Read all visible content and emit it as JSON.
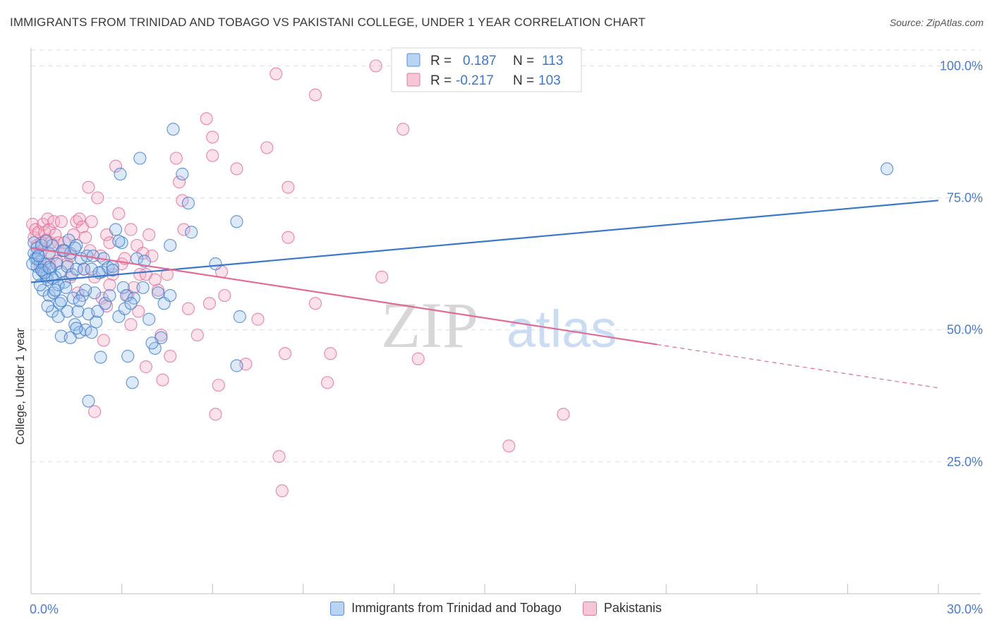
{
  "title": "IMMIGRANTS FROM TRINIDAD AND TOBAGO VS PAKISTANI COLLEGE, UNDER 1 YEAR CORRELATION CHART",
  "source": "Source: ZipAtlas.com",
  "watermark": {
    "zip": "ZIP",
    "atlas": "atlas"
  },
  "colors": {
    "blue": "#3b78c9",
    "blue_fill": "#9cc0ec",
    "pink": "#e06b96",
    "pink_fill": "#f3aac3",
    "axis_label": "#4a7cc7",
    "grid": "#dcdcdc"
  },
  "legend_box": {
    "rows": [
      {
        "r_label": "R =",
        "r_value": "0.187",
        "n_label": "N =",
        "n_value": "113"
      },
      {
        "r_label": "R =",
        "r_value": "-0.217",
        "n_label": "N =",
        "n_value": "103"
      }
    ]
  },
  "legend": [
    {
      "label": "Immigrants from Trinidad and Tobago"
    },
    {
      "label": "Pakistanis"
    }
  ],
  "chart_data": {
    "type": "scatter",
    "title": "IMMIGRANTS FROM TRINIDAD AND TOBAGO VS PAKISTANI COLLEGE, UNDER 1 YEAR CORRELATION CHART",
    "xlabel": "",
    "ylabel": "College, Under 1 year",
    "xlim": [
      0,
      30
    ],
    "ylim": [
      0,
      105
    ],
    "x_tick_labels": [
      "0.0%",
      "30.0%"
    ],
    "y_ticks": [
      25,
      50,
      75,
      100
    ],
    "y_tick_labels": [
      "25.0%",
      "50.0%",
      "75.0%",
      "100.0%"
    ],
    "grid": true,
    "legend_position": "top-center",
    "series": [
      {
        "name": "Immigrants from Trinidad and Tobago",
        "r": 0.187,
        "n": 113,
        "trend": {
          "x": [
            0,
            30
          ],
          "y": [
            59.0,
            74.5
          ]
        },
        "points": [
          [
            0.1,
            66.5
          ],
          [
            0.1,
            64.5
          ],
          [
            0.15,
            63.5
          ],
          [
            0.2,
            65.5
          ],
          [
            0.2,
            62
          ],
          [
            0.25,
            60.5
          ],
          [
            0.3,
            63
          ],
          [
            0.35,
            66
          ],
          [
            0.4,
            61
          ],
          [
            0.4,
            57.5
          ],
          [
            0.45,
            62.5
          ],
          [
            0.5,
            60
          ],
          [
            0.55,
            59.5
          ],
          [
            0.6,
            64.5
          ],
          [
            0.6,
            56.5
          ],
          [
            0.65,
            61.5
          ],
          [
            0.7,
            53.5
          ],
          [
            0.7,
            66
          ],
          [
            0.75,
            57
          ],
          [
            0.8,
            60
          ],
          [
            0.85,
            62.5
          ],
          [
            0.9,
            52.5
          ],
          [
            0.95,
            55
          ],
          [
            1.0,
            61
          ],
          [
            1.0,
            48.8
          ],
          [
            1.05,
            65
          ],
          [
            1.1,
            59
          ],
          [
            1.2,
            62
          ],
          [
            1.2,
            53.5
          ],
          [
            1.25,
            67
          ],
          [
            1.3,
            64.5
          ],
          [
            1.35,
            60.5
          ],
          [
            1.4,
            56
          ],
          [
            1.45,
            51
          ],
          [
            1.5,
            66
          ],
          [
            1.5,
            61.5
          ],
          [
            1.55,
            53.5
          ],
          [
            1.6,
            49.5
          ],
          [
            1.65,
            63.5
          ],
          [
            1.7,
            56.5
          ],
          [
            1.75,
            61.5
          ],
          [
            1.8,
            50
          ],
          [
            1.85,
            64
          ],
          [
            1.9,
            53
          ],
          [
            2.0,
            49.5
          ],
          [
            2.05,
            64
          ],
          [
            2.1,
            57
          ],
          [
            2.15,
            51.5
          ],
          [
            2.2,
            53.5
          ],
          [
            2.3,
            44.8
          ],
          [
            2.35,
            61
          ],
          [
            2.4,
            63.5
          ],
          [
            2.45,
            55
          ],
          [
            2.55,
            61.8
          ],
          [
            2.6,
            56.5
          ],
          [
            2.7,
            62
          ],
          [
            2.8,
            69
          ],
          [
            2.9,
            52.5
          ],
          [
            2.95,
            79.5
          ],
          [
            3.0,
            66.5
          ],
          [
            3.05,
            58
          ],
          [
            3.15,
            56.5
          ],
          [
            3.2,
            45
          ],
          [
            3.35,
            40
          ],
          [
            3.4,
            56
          ],
          [
            3.5,
            63.5
          ],
          [
            3.6,
            82.5
          ],
          [
            3.7,
            58
          ],
          [
            3.75,
            63
          ],
          [
            3.9,
            52
          ],
          [
            4.1,
            46.5
          ],
          [
            4.2,
            57
          ],
          [
            4.3,
            48.5
          ],
          [
            4.4,
            55
          ],
          [
            4.6,
            56.5
          ],
          [
            4.6,
            66
          ],
          [
            4.7,
            88
          ],
          [
            5.0,
            79.5
          ],
          [
            5.2,
            74
          ],
          [
            5.3,
            68.5
          ],
          [
            6.1,
            62.5
          ],
          [
            6.8,
            70.5
          ],
          [
            6.9,
            52.5
          ],
          [
            6.8,
            43.2
          ],
          [
            1.9,
            36.5
          ],
          [
            0.7,
            59.8
          ],
          [
            0.9,
            58.5
          ],
          [
            1.15,
            58
          ],
          [
            1.6,
            55.5
          ],
          [
            2.0,
            61.5
          ],
          [
            0.3,
            58.5
          ],
          [
            0.55,
            54.5
          ],
          [
            1.3,
            48.5
          ],
          [
            2.7,
            61.3
          ],
          [
            3.1,
            54
          ],
          [
            0.2,
            63.5
          ],
          [
            0.5,
            66.8
          ],
          [
            1.8,
            57.5
          ],
          [
            2.25,
            60.8
          ],
          [
            0.45,
            60.8
          ],
          [
            0.8,
            57.5
          ],
          [
            1.0,
            55.5
          ],
          [
            1.5,
            50.3
          ],
          [
            28.3,
            80.5
          ],
          [
            0.05,
            62.5
          ],
          [
            0.35,
            61.3
          ],
          [
            1.45,
            65.5
          ],
          [
            2.9,
            66.8
          ],
          [
            0.6,
            61.8
          ],
          [
            1.1,
            65
          ],
          [
            3.3,
            55
          ],
          [
            0.25,
            64
          ],
          [
            4.0,
            47.5
          ]
        ]
      },
      {
        "name": "Pakistanis",
        "r": -0.217,
        "n": 103,
        "trend": {
          "x": [
            0,
            30
          ],
          "y": [
            65.5,
            39.0
          ],
          "solid_until_x": 20.7
        },
        "points": [
          [
            0.05,
            70
          ],
          [
            0.1,
            67.5
          ],
          [
            0.15,
            69
          ],
          [
            0.2,
            66
          ],
          [
            0.25,
            68.5
          ],
          [
            0.3,
            64.5
          ],
          [
            0.35,
            66.5
          ],
          [
            0.4,
            70
          ],
          [
            0.45,
            68.5
          ],
          [
            0.5,
            67
          ],
          [
            0.55,
            71
          ],
          [
            0.6,
            69
          ],
          [
            0.65,
            66.5
          ],
          [
            0.7,
            64
          ],
          [
            0.75,
            70.5
          ],
          [
            0.8,
            68
          ],
          [
            0.9,
            66.5
          ],
          [
            1.0,
            70.5
          ],
          [
            1.05,
            65
          ],
          [
            1.1,
            66.5
          ],
          [
            1.2,
            62.5
          ],
          [
            1.3,
            64
          ],
          [
            1.4,
            68
          ],
          [
            1.5,
            70.5
          ],
          [
            1.6,
            71
          ],
          [
            1.7,
            69.5
          ],
          [
            1.8,
            67.5
          ],
          [
            1.9,
            77
          ],
          [
            1.95,
            65
          ],
          [
            2.0,
            70.5
          ],
          [
            2.1,
            60
          ],
          [
            2.2,
            75
          ],
          [
            2.3,
            64
          ],
          [
            2.35,
            56
          ],
          [
            2.5,
            68
          ],
          [
            2.5,
            54.5
          ],
          [
            2.6,
            66.5
          ],
          [
            2.7,
            60.5
          ],
          [
            2.8,
            81
          ],
          [
            2.9,
            72
          ],
          [
            3.0,
            62.5
          ],
          [
            3.1,
            63.5
          ],
          [
            3.2,
            56.5
          ],
          [
            3.3,
            69
          ],
          [
            3.4,
            58
          ],
          [
            3.5,
            66
          ],
          [
            3.6,
            60.5
          ],
          [
            3.7,
            64.5
          ],
          [
            3.8,
            60.5
          ],
          [
            3.9,
            68
          ],
          [
            4.0,
            64
          ],
          [
            4.1,
            59.5
          ],
          [
            4.3,
            49
          ],
          [
            4.35,
            40.5
          ],
          [
            4.5,
            60.5
          ],
          [
            4.8,
            82.5
          ],
          [
            4.9,
            78
          ],
          [
            5.0,
            74.5
          ],
          [
            5.05,
            69
          ],
          [
            5.2,
            54
          ],
          [
            5.8,
            90
          ],
          [
            5.9,
            55
          ],
          [
            6.0,
            86.5
          ],
          [
            6.0,
            83
          ],
          [
            6.1,
            34
          ],
          [
            6.3,
            61
          ],
          [
            6.4,
            56.5
          ],
          [
            6.8,
            80.5
          ],
          [
            7.1,
            43.5
          ],
          [
            7.5,
            52
          ],
          [
            7.8,
            84.5
          ],
          [
            8.1,
            98.5
          ],
          [
            8.2,
            26
          ],
          [
            8.3,
            19.5
          ],
          [
            8.4,
            45.5
          ],
          [
            8.5,
            67.5
          ],
          [
            8.5,
            77
          ],
          [
            9.4,
            94.5
          ],
          [
            9.4,
            55
          ],
          [
            9.8,
            40
          ],
          [
            9.9,
            45.5
          ],
          [
            11.4,
            100
          ],
          [
            11.6,
            60
          ],
          [
            12.3,
            88
          ],
          [
            12.8,
            44.5
          ],
          [
            15.8,
            28
          ],
          [
            17.6,
            34
          ],
          [
            6.2,
            39.5
          ],
          [
            2.4,
            48
          ],
          [
            1.3,
            60
          ],
          [
            3.8,
            43
          ],
          [
            2.1,
            34.5
          ],
          [
            0.3,
            62
          ],
          [
            1.55,
            57
          ],
          [
            4.6,
            45
          ],
          [
            5.5,
            49
          ],
          [
            3.3,
            51
          ],
          [
            2.6,
            58.5
          ],
          [
            0.85,
            63
          ],
          [
            1.75,
            61.5
          ],
          [
            4.2,
            57.5
          ],
          [
            0.6,
            62.5
          ],
          [
            3.55,
            53.5
          ]
        ]
      }
    ]
  }
}
